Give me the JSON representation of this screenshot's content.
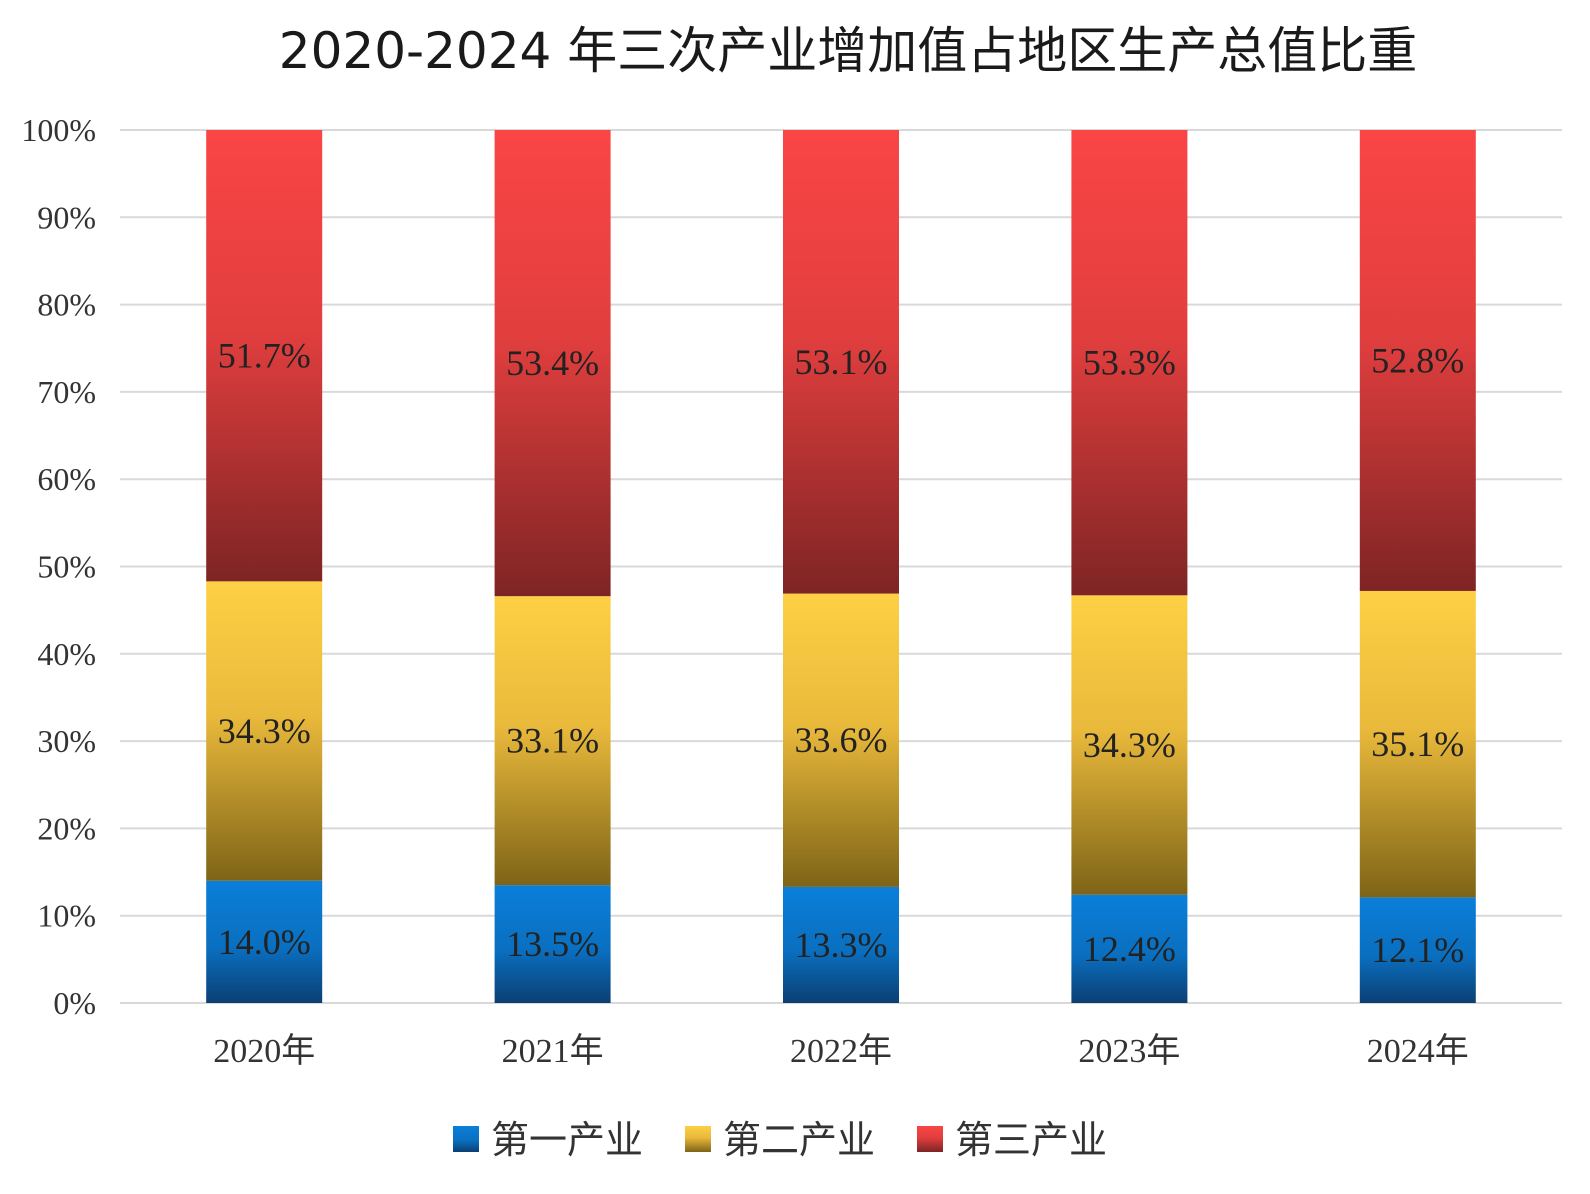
{
  "chart_data": {
    "type": "bar",
    "stacked": true,
    "title": "2020-2024 年三次产业增加值占地区生产总值比重",
    "categories": [
      "2020年",
      "2021年",
      "2022年",
      "2023年",
      "2024年"
    ],
    "series": [
      {
        "name": "第一产业",
        "values": [
          14.0,
          13.5,
          13.3,
          12.4,
          12.1
        ],
        "labels": [
          "14.0%",
          "13.5%",
          "13.3%",
          "12.4%",
          "12.1%"
        ],
        "color": "#0a78d2"
      },
      {
        "name": "第二产业",
        "values": [
          34.3,
          33.1,
          33.6,
          34.3,
          35.1
        ],
        "labels": [
          "34.3%",
          "33.1%",
          "33.6%",
          "34.3%",
          "35.1%"
        ],
        "color": "#f8c93f"
      },
      {
        "name": "第三产业",
        "values": [
          51.7,
          53.4,
          53.1,
          53.3,
          52.8
        ],
        "labels": [
          "51.7%",
          "53.4%",
          "53.1%",
          "53.3%",
          "52.8%"
        ],
        "color": "#f44444"
      }
    ],
    "y_ticks": [
      "0%",
      "10%",
      "20%",
      "30%",
      "40%",
      "50%",
      "60%",
      "70%",
      "80%",
      "90%",
      "100%"
    ],
    "ylim": [
      0,
      100
    ],
    "grid": true,
    "legend_position": "bottom"
  }
}
